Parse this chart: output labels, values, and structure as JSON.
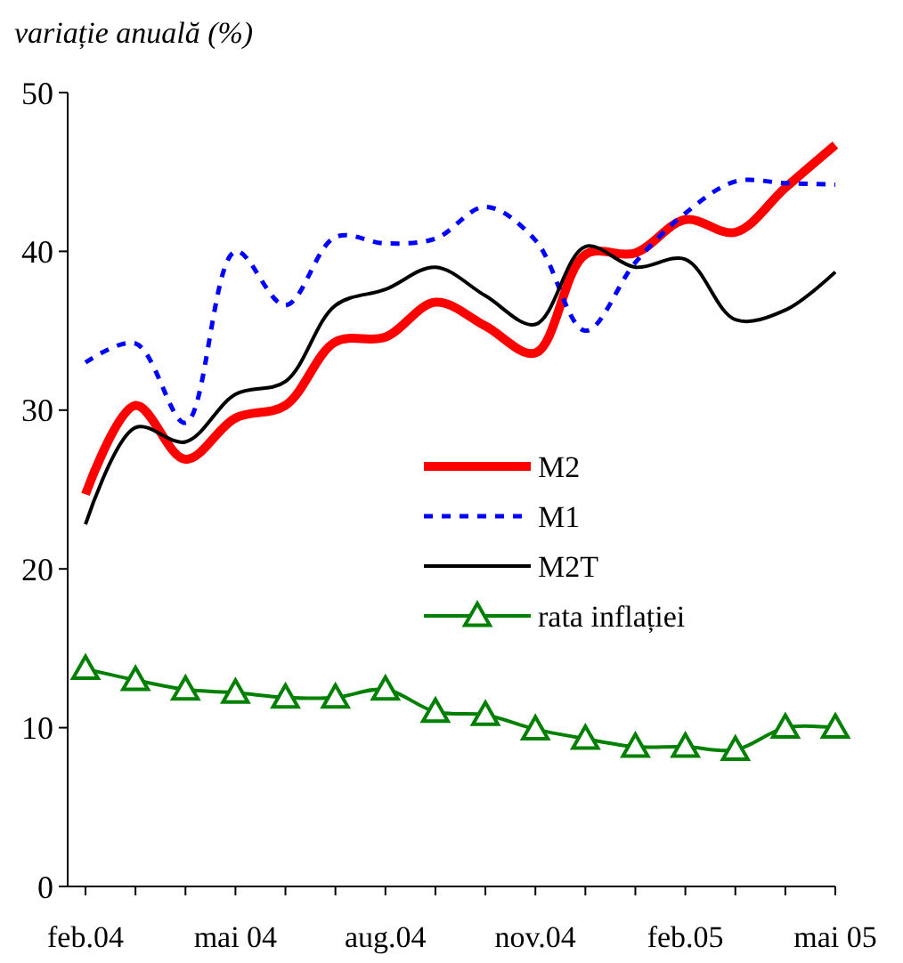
{
  "chart_data": {
    "type": "line",
    "ylabel": "variație anuală (%)",
    "categories": [
      "feb.04",
      null,
      null,
      "mai 04",
      null,
      null,
      "aug.04",
      null,
      null,
      "nov.04",
      null,
      null,
      "feb.05",
      null,
      null,
      "mai 05"
    ],
    "series": [
      {
        "name": "M2",
        "color": "#ff0000",
        "line_style": "solid",
        "marker": "none",
        "values": [
          24.7,
          30.3,
          26.9,
          29.5,
          30.3,
          34.3,
          34.6,
          36.8,
          35.3,
          33.6,
          39.8,
          39.9,
          42.0,
          41.2,
          44.0,
          46.7
        ]
      },
      {
        "name": "M1",
        "color": "#0000ff",
        "line_style": "dashed",
        "marker": "none",
        "values": [
          33.0,
          34.2,
          29.2,
          40.0,
          36.6,
          40.9,
          40.5,
          40.8,
          42.8,
          40.7,
          35.0,
          39.3,
          42.4,
          44.4,
          44.3,
          44.2
        ]
      },
      {
        "name": "M2T",
        "color": "#000000",
        "line_style": "solid",
        "marker": "none",
        "values": [
          22.8,
          28.9,
          28.0,
          31.0,
          31.8,
          36.6,
          37.6,
          39.0,
          37.2,
          35.4,
          40.3,
          39.0,
          39.5,
          35.7,
          36.3,
          38.7
        ]
      },
      {
        "name": "rata inflației",
        "color": "#008000",
        "line_style": "solid",
        "marker": "triangle",
        "values": [
          13.7,
          13.0,
          12.4,
          12.2,
          11.9,
          11.9,
          12.4,
          11.0,
          10.8,
          9.9,
          9.3,
          8.8,
          8.8,
          8.6,
          10.0,
          10.0
        ]
      }
    ],
    "ylim": [
      0,
      50
    ],
    "yticks": [
      0,
      10,
      20,
      30,
      40,
      50
    ],
    "grid": false,
    "legend": "right"
  }
}
